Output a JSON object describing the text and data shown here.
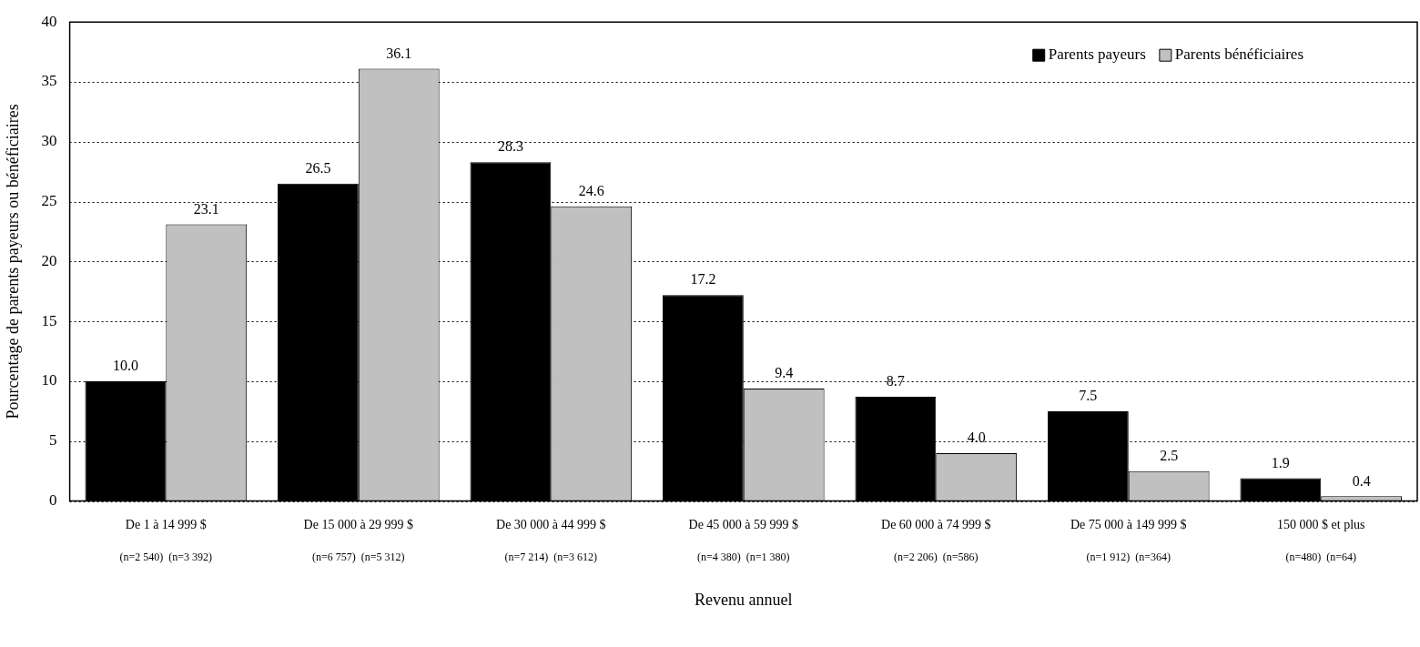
{
  "chart_data": {
    "type": "bar",
    "xlabel": "Revenu annuel",
    "ylabel": "Pourcentage de parents payeurs ou bénéficiaires",
    "categories": [
      "De 1 à 14 999 $",
      "De 15 000 à 29 999 $",
      "De 30 000 à 44 999 $",
      "De 45 000 à 59 999 $",
      "De 60 000 à 74 999 $",
      "De 75 000 à 149 999 $",
      "150 000 $ et plus"
    ],
    "series": [
      {
        "name": "Parents payeurs",
        "color": "#000000",
        "values": [
          10.0,
          26.5,
          28.3,
          17.2,
          8.7,
          7.5,
          1.9
        ],
        "value_labels": [
          "10.0",
          "26.5",
          "28.3",
          "17.2",
          "8.7",
          "7.5",
          "1.9"
        ]
      },
      {
        "name": "Parents bénéficiaires",
        "color": "#c0c0c0",
        "values": [
          23.1,
          36.1,
          24.6,
          9.4,
          4.0,
          2.5,
          0.4
        ],
        "value_labels": [
          "23.1",
          "36.1",
          "24.6",
          "9.4",
          "4.0",
          "2.5",
          "0.4"
        ]
      }
    ],
    "annotations": [
      "(n=2 540)  (n=3 392)",
      "(n=6 757)  (n=5 312)",
      "(n=7 214)  (n=3 612)",
      "(n=4 380)  (n=1 380)",
      "(n=2 206)  (n=586)",
      "(n=1 912)  (n=364)",
      "(n=480)  (n=64)"
    ],
    "ylim": [
      0,
      40
    ],
    "yticks": [
      0,
      5,
      10,
      15,
      20,
      25,
      30,
      35,
      40
    ],
    "grid": "y",
    "legend": "top right"
  }
}
